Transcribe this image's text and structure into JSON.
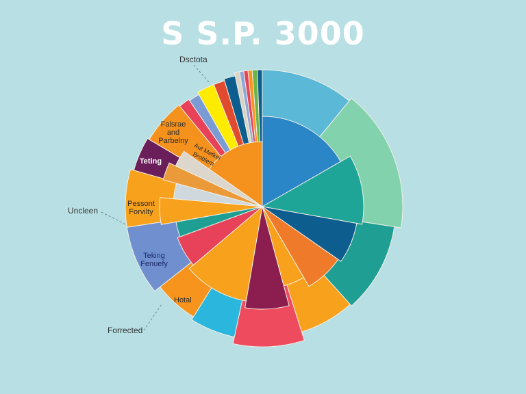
{
  "chart_data": {
    "type": "pie",
    "title": "S S.P. 3000",
    "outer_slices": [
      {
        "value": 11.1,
        "color": "#5bb8d6"
      },
      {
        "value": 16.7,
        "color": "#82d2ae"
      },
      {
        "value": 11.1,
        "color": "#1f9e94"
      },
      {
        "value": 6.9,
        "color": "#f8a11c"
      },
      {
        "value": 8.3,
        "color": "#ef4b5e"
      },
      {
        "value": 5.6,
        "color": "#2bb6dd"
      },
      {
        "value": 5.6,
        "color": "#f7941d"
      },
      {
        "value": 8.3,
        "color": "#6f8fcf"
      },
      {
        "value": 6.9,
        "color": "#f8a11c"
      },
      {
        "value": 4.2,
        "color": "#6a1e5a"
      },
      {
        "value": 5.6,
        "color": "#f5921e"
      },
      {
        "value": 1.4,
        "color": "#e8425a"
      },
      {
        "value": 1.4,
        "color": "#7a9bd4"
      },
      {
        "value": 2.2,
        "color": "#ffeb00"
      },
      {
        "value": 1.4,
        "color": "#e04a2e"
      },
      {
        "value": 1.4,
        "color": "#0d5e8f"
      },
      {
        "value": 0.6,
        "color": "#d8d4c8"
      },
      {
        "value": 0.5,
        "color": "#8fa8d8"
      },
      {
        "value": 0.5,
        "color": "#e8425a"
      },
      {
        "value": 0.5,
        "color": "#f7941d"
      },
      {
        "value": 0.6,
        "color": "#6fb44a"
      },
      {
        "value": 0.6,
        "color": "#0d5e8f"
      }
    ],
    "inner_slices": [
      {
        "value": 16.7,
        "color": "#2a86c6"
      },
      {
        "value": 11.1,
        "color": "#1fa597"
      },
      {
        "value": 6.9,
        "color": "#0d5e8f"
      },
      {
        "value": 6.9,
        "color": "#ee7a2a"
      },
      {
        "value": 4.2,
        "color": "#f8a11c"
      },
      {
        "value": 6.9,
        "color": "#8b1e4f"
      },
      {
        "value": 11.1,
        "color": "#f8a11c"
      },
      {
        "value": 5.6,
        "color": "#e8425a"
      },
      {
        "value": 2.8,
        "color": "#1f9e94"
      },
      {
        "value": 4.2,
        "color": "#f8a11c"
      },
      {
        "value": 2.8,
        "color": "#cfd8dc"
      },
      {
        "value": 2.8,
        "color": "#eb9a3a"
      },
      {
        "value": 2.8,
        "color": "#dcd6cc"
      },
      {
        "value": 15.2,
        "color": "#f5921e"
      }
    ],
    "labels": {
      "dsctota": "Dsctota",
      "falsrae": "Falsrae and Parbelny",
      "aut": "Aut Metkel Broblem",
      "teting": "Teting",
      "uncleen": "Uncleen",
      "pessont": "Pessont Forvilty",
      "teking": "Teking Fenuefy",
      "hotal": "Hotal",
      "forrected": "Forrected"
    }
  }
}
